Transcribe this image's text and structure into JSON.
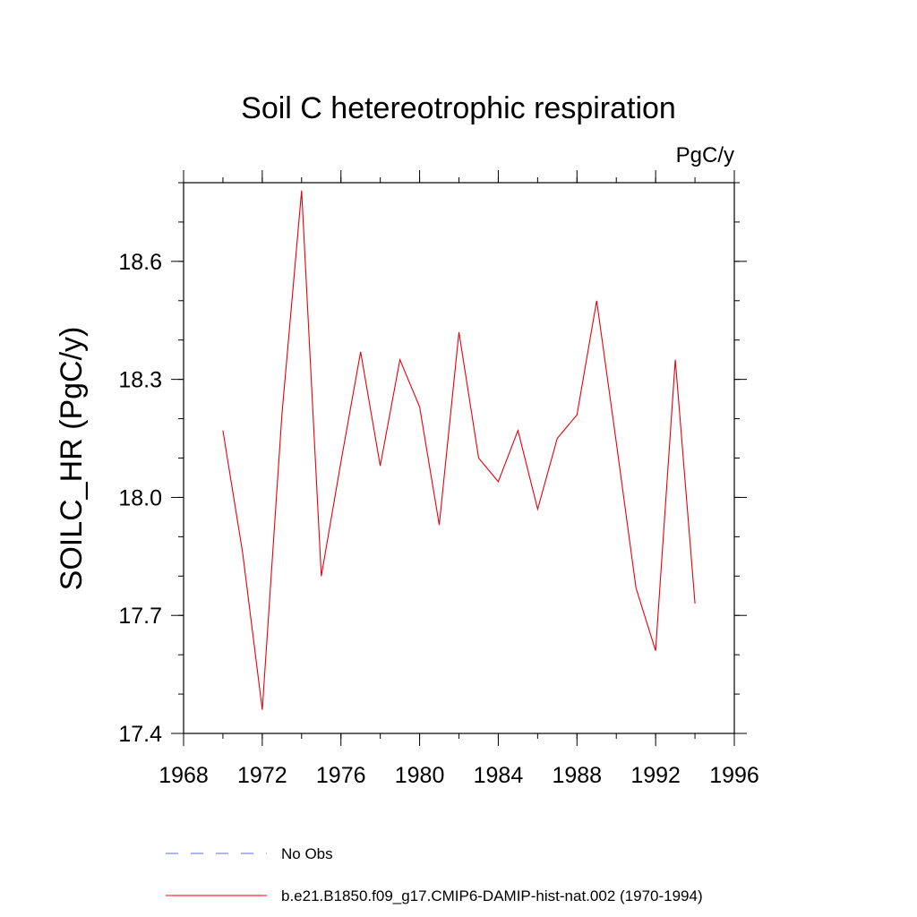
{
  "chart_data": {
    "type": "line",
    "title": "Soil C hetereotrophic respiration",
    "units_label": "PgC/y",
    "ylabel": "SOILC_HR  (PgC/y)",
    "xlabel": "",
    "xlim": [
      1968,
      1996
    ],
    "ylim": [
      17.4,
      18.8
    ],
    "x_ticks": [
      1968,
      1972,
      1976,
      1980,
      1984,
      1988,
      1992,
      1996
    ],
    "x_tick_labels": [
      "1968",
      "1972",
      "1976",
      "1980",
      "1984",
      "1988",
      "1992",
      "1996"
    ],
    "y_ticks": [
      17.4,
      17.7,
      18.0,
      18.3,
      18.6
    ],
    "y_tick_labels": [
      "17.4",
      "17.7",
      "18.0",
      "18.3",
      "18.6"
    ],
    "y_minor_step": 0.1,
    "x_minor_step": 2,
    "grid": false,
    "legend_position": "bottom",
    "series": [
      {
        "name": "b.e21.B1850.f09_g17.CMIP6-DAMIP-hist-nat.002 (1970-1994)",
        "color": "#e8000b",
        "style": "solid",
        "x": [
          1970,
          1971,
          1972,
          1973,
          1974,
          1975,
          1976,
          1977,
          1978,
          1979,
          1980,
          1981,
          1982,
          1983,
          1984,
          1985,
          1986,
          1987,
          1988,
          1989,
          1990,
          1991,
          1992,
          1993,
          1994
        ],
        "y": [
          18.17,
          17.86,
          17.46,
          18.21,
          18.78,
          17.8,
          18.09,
          18.37,
          18.08,
          18.35,
          18.23,
          17.93,
          18.42,
          18.1,
          18.04,
          18.17,
          17.97,
          18.15,
          18.21,
          18.5,
          18.14,
          17.77,
          17.61,
          18.35,
          17.73
        ]
      }
    ],
    "legend": [
      {
        "label": "No Obs",
        "color": "#6a6ad8",
        "style": "dashed"
      },
      {
        "label": "b.e21.B1850.f09_g17.CMIP6-DAMIP-hist-nat.002 (1970-1994)",
        "color": "#e8000b",
        "style": "solid"
      }
    ]
  }
}
